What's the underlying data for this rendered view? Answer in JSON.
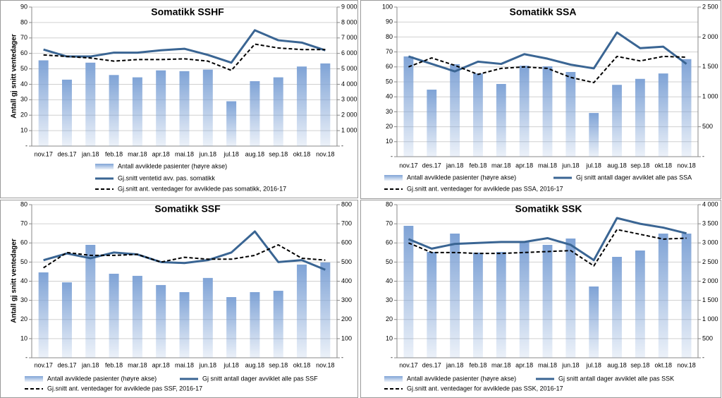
{
  "chart_data": [
    {
      "type": "combo",
      "title": "Somatikk SSHF",
      "y_label": "Antall gj snitt ventedager",
      "categories": [
        "nov.17",
        "des.17",
        "jan.18",
        "feb.18",
        "mar.18",
        "apr.18",
        "mai.18",
        "jun.18",
        "jul.18",
        "aug.18",
        "sep.18",
        "okt.18",
        "nov.18"
      ],
      "ylim": [
        0,
        90
      ],
      "yticks": [
        {
          "value": 0,
          "label": "-"
        },
        10,
        20,
        30,
        40,
        50,
        60,
        70,
        80,
        90
      ],
      "y2lim": [
        0,
        9000
      ],
      "y2ticks": [
        {
          "value": 0,
          "label": "-"
        },
        {
          "value": 1000,
          "label": "1 000"
        },
        {
          "value": 2000,
          "label": "2 000"
        },
        {
          "value": 3000,
          "label": "3 000"
        },
        {
          "value": 4000,
          "label": "4 000"
        },
        {
          "value": 5000,
          "label": "5 000"
        },
        {
          "value": 6000,
          "label": "6 000"
        },
        {
          "value": 7000,
          "label": "7 000"
        },
        {
          "value": 8000,
          "label": "8 000"
        },
        {
          "value": 9000,
          "label": "9 000"
        }
      ],
      "grid": true,
      "series": [
        {
          "name": "Antall avviklede pasienter (høyre akse)",
          "type": "bar",
          "axis": "y2",
          "color": "#7fa3d6",
          "values": [
            5550,
            4300,
            5400,
            4600,
            4450,
            4900,
            4850,
            4950,
            2900,
            4200,
            4450,
            5150,
            5350
          ]
        },
        {
          "name": "Gj.snitt ventetid avv. pas. somatikk",
          "type": "line",
          "color": "#3a6593",
          "values": [
            62.5,
            58,
            58,
            60.5,
            60.5,
            62,
            63,
            59,
            54,
            75,
            68.5,
            67,
            62
          ]
        },
        {
          "name": "Gj.snitt ant. ventedager for avviklede pas somatikk, 2016-17",
          "type": "line",
          "dashed": true,
          "color": "#000000",
          "values": [
            59,
            58,
            57,
            55,
            56,
            56,
            56.5,
            55,
            49,
            66,
            63.5,
            62.5,
            62.5
          ]
        }
      ]
    },
    {
      "type": "combo",
      "title": "Somatikk SSA",
      "categories": [
        "nov.17",
        "des.17",
        "jan.18",
        "feb.18",
        "mar.18",
        "apr.18",
        "mai.18",
        "jun.18",
        "jul.18",
        "aug.18",
        "sep.18",
        "okt.18",
        "nov.18"
      ],
      "ylim": [
        0,
        100
      ],
      "yticks": [
        {
          "value": 0,
          "label": "-"
        },
        10,
        20,
        30,
        40,
        50,
        60,
        70,
        80,
        90,
        100
      ],
      "y2lim": [
        0,
        2500
      ],
      "y2ticks": [
        {
          "value": 0,
          "label": "-"
        },
        500,
        {
          "value": 1000,
          "label": "1 000"
        },
        {
          "value": 1500,
          "label": "1 500"
        },
        {
          "value": 2000,
          "label": "2 000"
        },
        {
          "value": 2500,
          "label": "2 500"
        }
      ],
      "grid": true,
      "series": [
        {
          "name": "Antall avviklede pasienter (høyre akse)",
          "type": "bar",
          "axis": "y2",
          "color": "#7fa3d6",
          "values": [
            1675,
            1120,
            1545,
            1390,
            1215,
            1520,
            1510,
            1415,
            730,
            1200,
            1300,
            1390,
            1630
          ]
        },
        {
          "name": "Gj snitt antall dager avviklet alle pas SSA",
          "type": "line",
          "color": "#3a6593",
          "values": [
            67,
            62,
            57,
            63.5,
            62,
            68.5,
            65.5,
            61.5,
            59,
            83,
            72.5,
            73.5,
            62
          ]
        },
        {
          "name": "Gj.snitt ant. ventedager for avviklede pas SSA, 2016-17",
          "type": "line",
          "dashed": true,
          "color": "#000000",
          "values": [
            60,
            66,
            61,
            55,
            59,
            60,
            59,
            53,
            49.5,
            67,
            64,
            67,
            66.5
          ]
        }
      ]
    },
    {
      "type": "combo",
      "title": "Somatikk SSF",
      "y_label": "Antall gj snitt ventedager",
      "categories": [
        "nov.17",
        "des.17",
        "jan.18",
        "feb.18",
        "mar.18",
        "apr.18",
        "mai.18",
        "jun.18",
        "jul.18",
        "aug.18",
        "sep.18",
        "okt.18",
        "nov.18"
      ],
      "ylim": [
        0,
        80
      ],
      "yticks": [
        {
          "value": 0,
          "label": "-"
        },
        10,
        20,
        30,
        40,
        50,
        60,
        70,
        80
      ],
      "y2lim": [
        0,
        800
      ],
      "y2ticks": [
        {
          "value": 0,
          "label": "-"
        },
        100,
        200,
        300,
        400,
        500,
        600,
        700,
        800
      ],
      "grid": true,
      "series": [
        {
          "name": "Antall avviklede pasienter (høyre akse)",
          "type": "bar",
          "axis": "y2",
          "color": "#7fa3d6",
          "values": [
            446,
            394,
            590,
            439,
            428,
            380,
            343,
            417,
            317,
            343,
            350,
            487,
            498
          ]
        },
        {
          "name": "Gj snitt antall dager avviklet alle pas SSF",
          "type": "line",
          "color": "#3a6593",
          "values": [
            51,
            54.5,
            52,
            55,
            54,
            50,
            49.5,
            51,
            55,
            66,
            50,
            51,
            46
          ]
        },
        {
          "name": "Gj.snitt ant. ventedager for avviklede pas SSF, 2016-17",
          "type": "line",
          "dashed": true,
          "color": "#000000",
          "values": [
            47,
            55,
            53.5,
            53.5,
            54,
            50,
            52.5,
            51.5,
            51.5,
            53.5,
            59,
            52,
            51
          ]
        }
      ]
    },
    {
      "type": "combo",
      "title": "Somatikk SSK",
      "categories": [
        "nov.17",
        "des.17",
        "jan.18",
        "feb.18",
        "mar.18",
        "apr.18",
        "mai.18",
        "jun.18",
        "jul.18",
        "aug.18",
        "sep.18",
        "okt.18",
        "nov.18"
      ],
      "ylim": [
        0,
        80
      ],
      "yticks": [
        {
          "value": 0,
          "label": "-"
        },
        10,
        20,
        30,
        40,
        50,
        60,
        70,
        80
      ],
      "y2lim": [
        0,
        4000
      ],
      "y2ticks": [
        {
          "value": 0,
          "label": "-"
        },
        500,
        {
          "value": 1000,
          "label": "1 000"
        },
        {
          "value": 1500,
          "label": "1 500"
        },
        {
          "value": 2000,
          "label": "2 000"
        },
        {
          "value": 2500,
          "label": "2 500"
        },
        {
          "value": 3000,
          "label": "3 000"
        },
        {
          "value": 3500,
          "label": "3 500"
        },
        {
          "value": 4000,
          "label": "4 000"
        }
      ],
      "grid": true,
      "series": [
        {
          "name": "Antall avviklede pasienter (høyre akse)",
          "type": "bar",
          "axis": "y2",
          "color": "#7fa3d6",
          "values": [
            3447,
            2765,
            3244,
            2747,
            2765,
            3023,
            2949,
            3115,
            1862,
            2636,
            2802,
            3244,
            3244
          ]
        },
        {
          "name": "Gj snitt antall dager avviklet alle pas SSK",
          "type": "line",
          "color": "#3a6593",
          "values": [
            62,
            57,
            59.5,
            60,
            60.5,
            60.5,
            62.5,
            59,
            51,
            73,
            70,
            68,
            65
          ]
        },
        {
          "name": "Gj.snitt ant. ventedager for avviklede pas SSK, 2016-17",
          "type": "line",
          "dashed": true,
          "color": "#000000",
          "values": [
            60,
            55,
            55,
            54.5,
            54.5,
            55,
            55.5,
            56,
            48,
            67,
            64.5,
            62,
            62.5
          ]
        }
      ]
    }
  ]
}
